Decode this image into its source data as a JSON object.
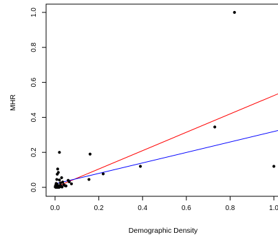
{
  "chart_data": {
    "type": "scatter",
    "xlabel": "Demographic Density",
    "ylabel": "MHR",
    "xlim": [
      0,
      1.0
    ],
    "ylim": [
      0,
      1.0
    ],
    "x_ticks": [
      {
        "value": 0.0,
        "label": "0.0"
      },
      {
        "value": 0.2,
        "label": "0.2"
      },
      {
        "value": 0.4,
        "label": "0.4"
      },
      {
        "value": 0.6,
        "label": "0.6"
      },
      {
        "value": 0.8,
        "label": "0.8"
      },
      {
        "value": 1.0,
        "label": "1.0"
      }
    ],
    "y_ticks": [
      {
        "value": 0.0,
        "label": "0.0"
      },
      {
        "value": 0.2,
        "label": "0.2"
      },
      {
        "value": 0.4,
        "label": "0.4"
      },
      {
        "value": 0.6,
        "label": "0.6"
      },
      {
        "value": 0.8,
        "label": "0.8"
      },
      {
        "value": 1.0,
        "label": "1.0"
      }
    ],
    "points": [
      {
        "x": 0.82,
        "y": 1.0
      },
      {
        "x": 0.73,
        "y": 0.345
      },
      {
        "x": 1.0,
        "y": 0.12
      },
      {
        "x": 0.39,
        "y": 0.12
      },
      {
        "x": 0.22,
        "y": 0.077
      },
      {
        "x": 0.16,
        "y": 0.19
      },
      {
        "x": 0.155,
        "y": 0.045
      },
      {
        "x": 0.02,
        "y": 0.2
      },
      {
        "x": 0.012,
        "y": 0.105
      },
      {
        "x": 0.015,
        "y": 0.085
      },
      {
        "x": 0.01,
        "y": 0.075
      },
      {
        "x": 0.03,
        "y": 0.055
      },
      {
        "x": 0.008,
        "y": 0.045
      },
      {
        "x": 0.02,
        "y": 0.042
      },
      {
        "x": 0.06,
        "y": 0.04
      },
      {
        "x": 0.065,
        "y": 0.032
      },
      {
        "x": 0.075,
        "y": 0.02
      },
      {
        "x": 0.035,
        "y": 0.03
      },
      {
        "x": 0.025,
        "y": 0.025
      },
      {
        "x": 0.005,
        "y": 0.022
      },
      {
        "x": 0.01,
        "y": 0.018
      },
      {
        "x": 0.04,
        "y": 0.015
      },
      {
        "x": 0.045,
        "y": 0.01
      },
      {
        "x": 0.05,
        "y": 0.008
      },
      {
        "x": 0.003,
        "y": 0.012
      },
      {
        "x": 0.006,
        "y": 0.006
      },
      {
        "x": 0.009,
        "y": 0.004
      },
      {
        "x": 0.013,
        "y": 0.009
      },
      {
        "x": 0.017,
        "y": 0.005
      },
      {
        "x": 0.022,
        "y": 0.003
      },
      {
        "x": 0.028,
        "y": 0.006
      },
      {
        "x": 0.032,
        "y": 0.002
      },
      {
        "x": 0.001,
        "y": 0.002
      },
      {
        "x": 0.004,
        "y": 0.0
      },
      {
        "x": 0.007,
        "y": 0.001
      },
      {
        "x": 0.011,
        "y": 0.0
      },
      {
        "x": 0.014,
        "y": 0.002
      },
      {
        "x": 0.018,
        "y": 0.0
      },
      {
        "x": 0.002,
        "y": 0.008
      },
      {
        "x": 0.024,
        "y": 0.012
      }
    ],
    "lines": [
      {
        "color": "#ff0000",
        "x": [
          0.0,
          1.02
        ],
        "y": [
          0.0,
          0.535
        ]
      },
      {
        "color": "#0000ff",
        "x": [
          0.0,
          1.02
        ],
        "y": [
          0.02,
          0.325
        ]
      }
    ],
    "point_color": "#000000"
  }
}
